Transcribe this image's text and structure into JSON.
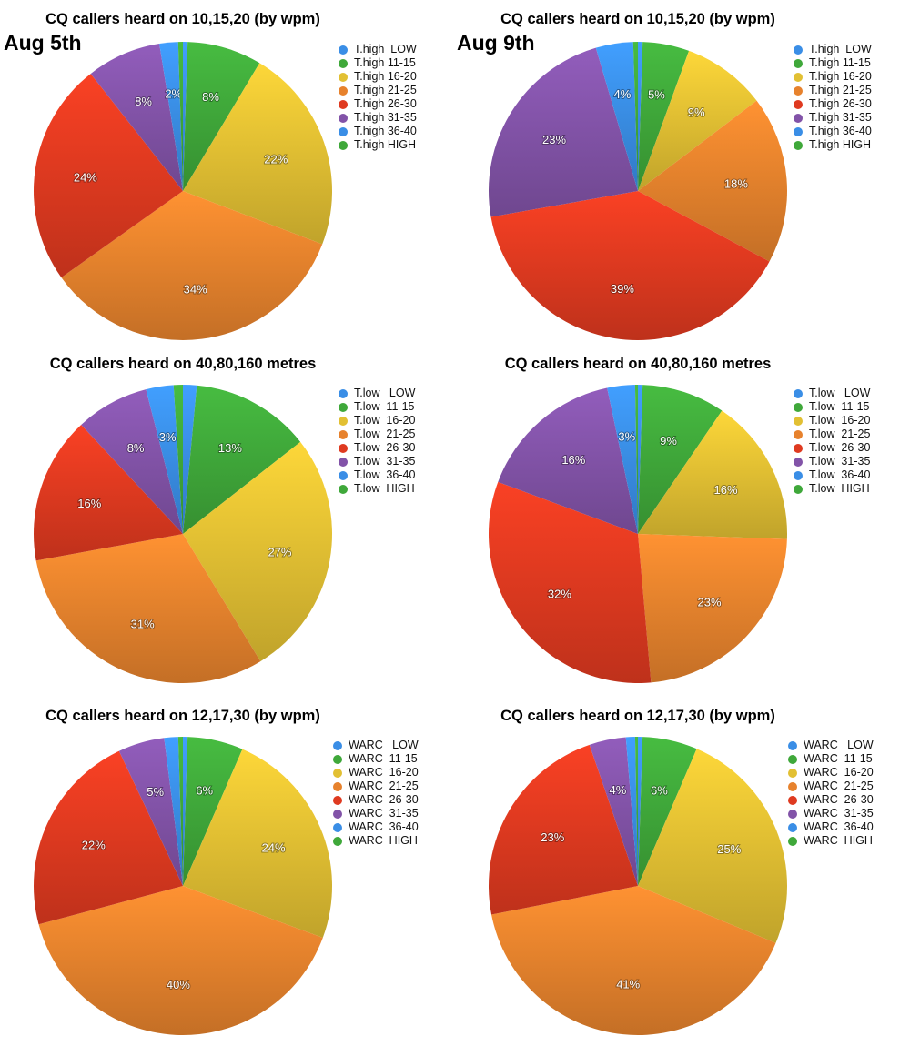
{
  "colors": {
    "LOW": "#3a8ee6",
    "11-15": "#3fa83a",
    "16-20": "#e2c033",
    "21-25": "#e7822d",
    "26-30": "#df3a20",
    "31-35": "#8253a8",
    "36-40": "#3a8ee6",
    "HIGH": "#3fa83a"
  },
  "dates": {
    "left": "Aug 5th",
    "right": "Aug 9th"
  },
  "chart_data": [
    {
      "type": "pie",
      "title": "CQ callers heard on 10,15,20 (by wpm)",
      "date": "Aug 5th",
      "categories": [
        "T.high  LOW",
        "T.high 11-15",
        "T.high 16-20",
        "T.high 21-25",
        "T.high 26-30",
        "T.high 31-35",
        "T.high 36-40",
        "T.high HIGH"
      ],
      "keys": [
        "LOW",
        "11-15",
        "16-20",
        "21-25",
        "26-30",
        "31-35",
        "36-40",
        "HIGH"
      ],
      "values": [
        0.5,
        8,
        22,
        34,
        24,
        8,
        2,
        0.5
      ],
      "labels": [
        "",
        "8%",
        "22%",
        "34%",
        "24%",
        "8%",
        "2%",
        ""
      ],
      "legend": "right"
    },
    {
      "type": "pie",
      "title": "CQ callers heard on 10,15,20 (by wpm)",
      "date": "Aug 9th",
      "categories": [
        "T.high  LOW",
        "T.high 11-15",
        "T.high 16-20",
        "T.high 21-25",
        "T.high 26-30",
        "T.high 31-35",
        "T.high 36-40",
        "T.high HIGH"
      ],
      "keys": [
        "LOW",
        "11-15",
        "16-20",
        "21-25",
        "26-30",
        "31-35",
        "36-40",
        "HIGH"
      ],
      "values": [
        0.5,
        5,
        9,
        18,
        39,
        23,
        4,
        0.5
      ],
      "labels": [
        "",
        "5%",
        "9%",
        "18%",
        "39%",
        "23%",
        "4%",
        ""
      ],
      "legend": "right"
    },
    {
      "type": "pie",
      "title": "CQ callers heard on 40,80,160 metres",
      "categories": [
        "T.low   LOW",
        "T.low  11-15",
        "T.low  16-20",
        "T.low  21-25",
        "T.low  26-30",
        "T.low  31-35",
        "T.low  36-40",
        "T.low  HIGH"
      ],
      "keys": [
        "LOW",
        "11-15",
        "16-20",
        "21-25",
        "26-30",
        "31-35",
        "36-40",
        "HIGH"
      ],
      "values": [
        1.5,
        13,
        27,
        31,
        16,
        8,
        3,
        1
      ],
      "labels": [
        "",
        "13%",
        "27%",
        "31%",
        "16%",
        "8%",
        "3%",
        ""
      ],
      "legend": "right"
    },
    {
      "type": "pie",
      "title": "CQ callers heard on 40,80,160 metres",
      "categories": [
        "T.low   LOW",
        "T.low  11-15",
        "T.low  16-20",
        "T.low  21-25",
        "T.low  26-30",
        "T.low  31-35",
        "T.low  36-40",
        "T.low  HIGH"
      ],
      "keys": [
        "LOW",
        "11-15",
        "16-20",
        "21-25",
        "26-30",
        "31-35",
        "36-40",
        "HIGH"
      ],
      "values": [
        0.5,
        9,
        16,
        23,
        32,
        16,
        3,
        0.3
      ],
      "labels": [
        "",
        "9%",
        "16%",
        "23%",
        "32%",
        "16%",
        "3%",
        ""
      ],
      "legend": "right"
    },
    {
      "type": "pie",
      "title": "CQ callers heard on 12,17,30 (by wpm)",
      "categories": [
        "WARC   LOW",
        "WARC  11-15",
        "WARC  16-20",
        "WARC  21-25",
        "WARC  26-30",
        "WARC  31-35",
        "WARC  36-40",
        "WARC  HIGH"
      ],
      "keys": [
        "LOW",
        "11-15",
        "16-20",
        "21-25",
        "26-30",
        "31-35",
        "36-40",
        "HIGH"
      ],
      "values": [
        0.5,
        6,
        24,
        40,
        22,
        5,
        1.5,
        0.5
      ],
      "labels": [
        "",
        "6%",
        "24%",
        "40%",
        "22%",
        "5%",
        "",
        ""
      ],
      "legend": "right"
    },
    {
      "type": "pie",
      "title": "CQ callers heard on 12,17,30 (by wpm)",
      "categories": [
        "WARC   LOW",
        "WARC  11-15",
        "WARC  16-20",
        "WARC  21-25",
        "WARC  26-30",
        "WARC  31-35",
        "WARC  36-40",
        "WARC  HIGH"
      ],
      "keys": [
        "LOW",
        "11-15",
        "16-20",
        "21-25",
        "26-30",
        "31-35",
        "36-40",
        "HIGH"
      ],
      "values": [
        0.5,
        6,
        25,
        41,
        23,
        4,
        1,
        0.3
      ],
      "labels": [
        "",
        "6%",
        "25%",
        "41%",
        "23%",
        "4%",
        "",
        ""
      ],
      "legend": "right"
    }
  ]
}
